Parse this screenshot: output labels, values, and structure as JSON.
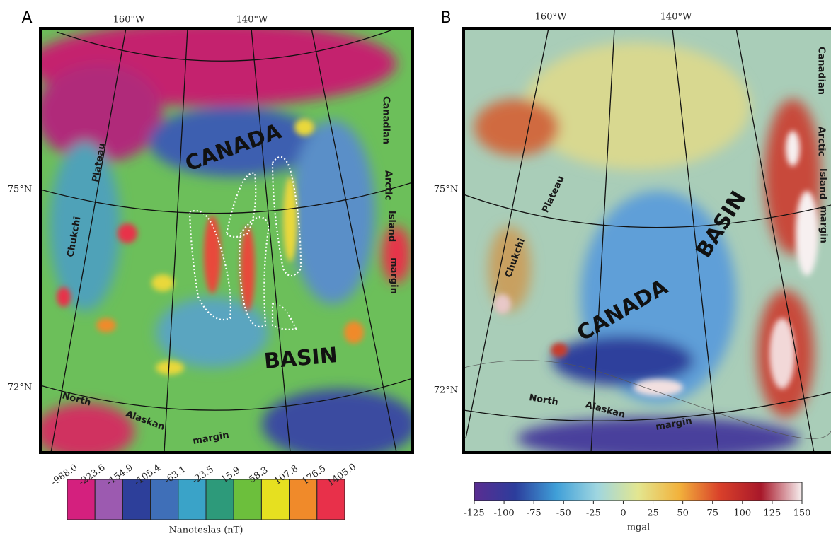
{
  "panels": [
    {
      "label": "A",
      "graticule_labels": {
        "lon": [
          "160°W",
          "140°W"
        ],
        "lat": [
          "75°N",
          "72°N"
        ]
      },
      "map_labels": {
        "basin": [
          "CANADA",
          "BASIN"
        ],
        "plateau": [
          "Chukchi",
          "Plateau"
        ],
        "margin_east": [
          "Canadian",
          "Arctic",
          "Island",
          "margin"
        ],
        "margin_south": [
          "North",
          "Alaskan",
          "margin"
        ]
      },
      "colorbar": {
        "ticks": [
          "-988.0",
          "-223.6",
          "-154.9",
          "-105.4",
          "-63.1",
          "-23.5",
          "15.9",
          "58.3",
          "107.8",
          "176.5",
          "1405.0"
        ],
        "colors": [
          "#d4207e",
          "#9c5ab0",
          "#2d3f9a",
          "#3f6fb8",
          "#3aa3c8",
          "#2d9a7a",
          "#6cbf3c",
          "#e6e020",
          "#f08a2a",
          "#e8304a"
        ],
        "unit": "Nanoteslas (nT)"
      }
    },
    {
      "label": "B",
      "graticule_labels": {
        "lon": [
          "160°W",
          "140°W"
        ],
        "lat": [
          "75°N",
          "72°N"
        ]
      },
      "map_labels": {
        "basin": [
          "CANADA",
          "BASIN"
        ],
        "plateau": [
          "Chukchi",
          "Plateau"
        ],
        "margin_east": [
          "Canadian",
          "Arctic",
          "Island",
          "margin"
        ],
        "margin_south": [
          "North",
          "Alaskan",
          "margin"
        ]
      },
      "colorbar": {
        "ticks": [
          "-125",
          "-100",
          "-75",
          "-50",
          "-25",
          "0",
          "25",
          "50",
          "75",
          "100",
          "125",
          "150"
        ],
        "colors": [
          "#5a2d91",
          "#2c3d9c",
          "#3f9fd8",
          "#9fd6e0",
          "#e3e690",
          "#f2b23c",
          "#d9402a",
          "#a8182a",
          "#f7f0f0"
        ],
        "unit": "mgal"
      }
    }
  ]
}
